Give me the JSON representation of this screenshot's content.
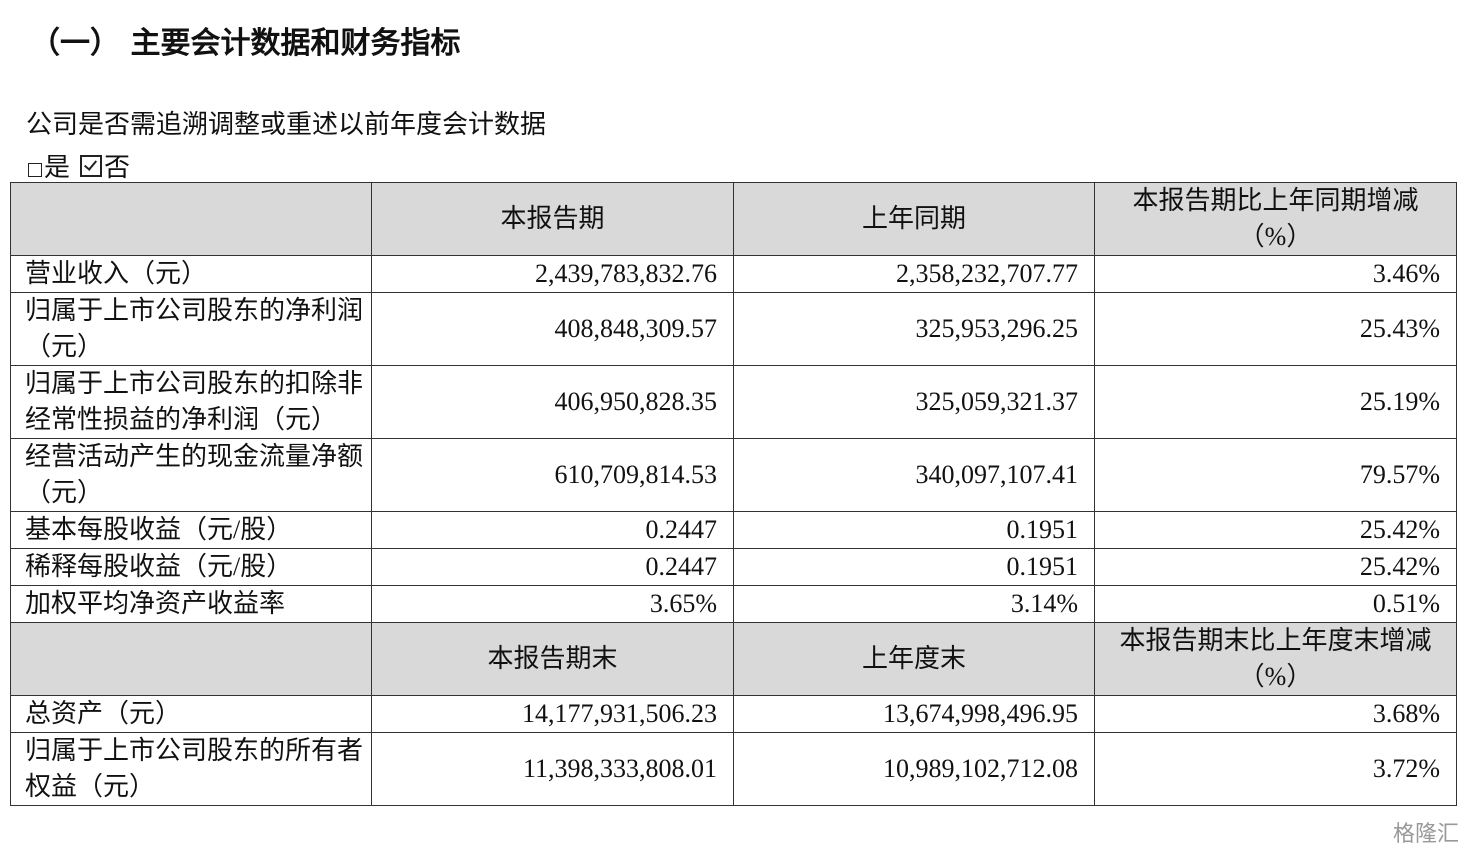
{
  "header": {
    "title": "（一） 主要会计数据和财务指标"
  },
  "question": "公司是否需追溯调整或重述以前年度会计数据",
  "options": [
    "是",
    "否"
  ],
  "table": {
    "sections": [
      {
        "columns": [
          "本报告期",
          "上年同期",
          "本报告期比上年同期增减（%）"
        ],
        "rows": [
          [
            "营业收入（元）",
            "2,439,783,832.76",
            "2,358,232,707.77",
            "3.46%"
          ],
          [
            "归属于上市公司股东的净利润（元）",
            "408,848,309.57",
            "325,953,296.25",
            "25.43%"
          ],
          [
            "归属于上市公司股东的扣除非经常性损益的净利润（元）",
            "406,950,828.35",
            "325,059,321.37",
            "25.19%"
          ],
          [
            "经营活动产生的现金流量净额（元）",
            "610,709,814.53",
            "340,097,107.41",
            "79.57%"
          ],
          [
            "基本每股收益（元/股）",
            "0.2447",
            "0.1951",
            "25.42%"
          ],
          [
            "稀释每股收益（元/股）",
            "0.2447",
            "0.1951",
            "25.42%"
          ],
          [
            "加权平均净资产收益率",
            "3.65%",
            "3.14%",
            "0.51%"
          ]
        ]
      },
      {
        "columns": [
          "本报告期末",
          "上年度末",
          "本报告期末比上年度末增减（%）"
        ],
        "rows": [
          [
            "总资产（元）",
            "14,177,931,506.23",
            "13,674,998,496.95",
            "3.68%"
          ],
          [
            "归属于上市公司股东的所有者权益（元）",
            "11,398,333,808.01",
            "10,989,102,712.08",
            "3.72%"
          ]
        ]
      }
    ]
  },
  "watermark": "格隆汇"
}
